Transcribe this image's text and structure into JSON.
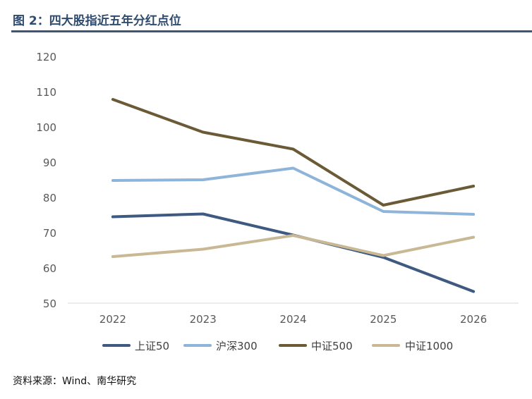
{
  "figure_title": "图 2：四大股指近五年分红点位",
  "source_note": "资料来源：Wind、南华研究",
  "colors": {
    "title_text": "#2f4b6e",
    "title_rule": "#3e5674",
    "axis_line": "#d9d9d9",
    "tick_text": "#595959"
  },
  "chart_data": {
    "type": "line",
    "title": "",
    "xlabel": "",
    "ylabel": "",
    "categories": [
      "2022",
      "2023",
      "2024",
      "2025",
      "2026"
    ],
    "ylim": [
      50,
      120
    ],
    "yticks": [
      50,
      60,
      70,
      80,
      90,
      100,
      110,
      120
    ],
    "grid": false,
    "legend_position": "bottom",
    "series": [
      {
        "name": "上证50",
        "color": "#3e5a80",
        "values": [
          74.5,
          75.3,
          69.3,
          63.0,
          53.3
        ]
      },
      {
        "name": "沪深300",
        "color": "#8fb4d9",
        "values": [
          84.8,
          85.0,
          88.3,
          76.0,
          75.2
        ]
      },
      {
        "name": "中证500",
        "color": "#6b5a36",
        "values": [
          107.8,
          98.5,
          93.7,
          77.8,
          83.2
        ]
      },
      {
        "name": "中证1000",
        "color": "#c9b894",
        "values": [
          63.2,
          65.3,
          69.2,
          63.5,
          68.7
        ]
      }
    ]
  }
}
